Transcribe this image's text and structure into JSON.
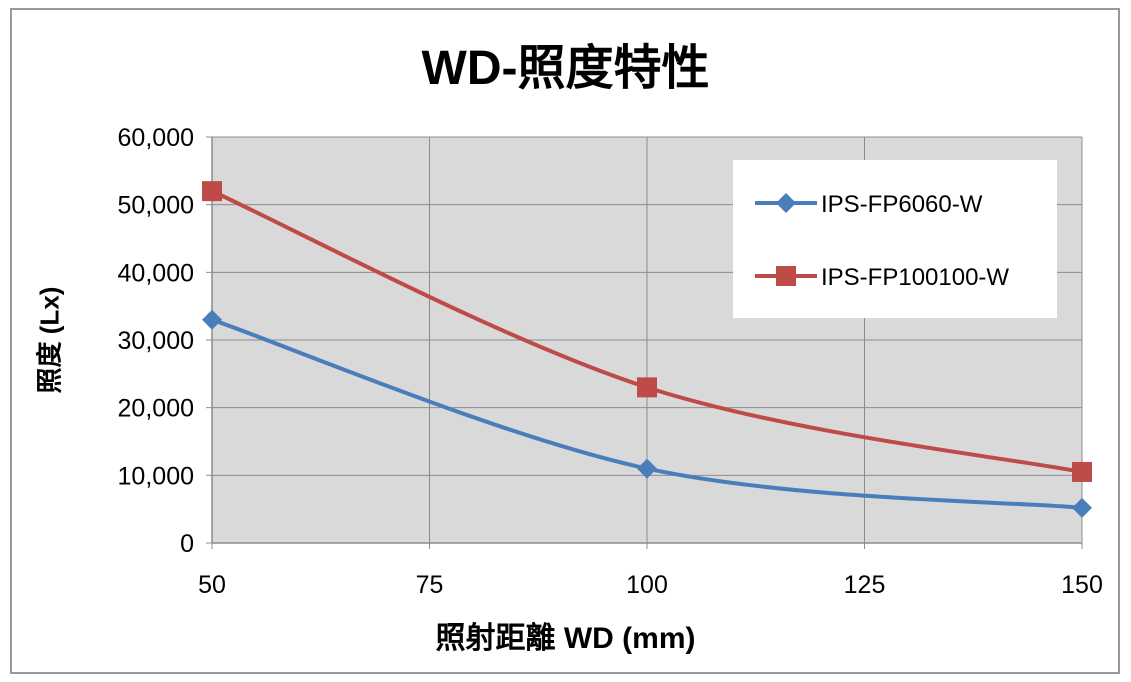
{
  "chart_data": {
    "type": "line",
    "title": "WD-照度特性",
    "xlabel": "照射距離  WD (mm)",
    "ylabel": "照度 (Lx)",
    "x_ticks": [
      "50",
      "75",
      "100",
      "125",
      "150"
    ],
    "y_ticks": [
      "0",
      "10,000",
      "20,000",
      "30,000",
      "40,000",
      "50,000",
      "60,000"
    ],
    "xlim": [
      50,
      150
    ],
    "ylim": [
      0,
      60000
    ],
    "grid": true,
    "legend_position": "top-right",
    "series": [
      {
        "name": "IPS-FP6060-W",
        "color": "#4a7ebb",
        "marker": "diamond",
        "x": [
          50,
          100,
          150
        ],
        "y": [
          33000,
          11000,
          5200
        ]
      },
      {
        "name": "IPS-FP100100-W",
        "color": "#be4b48",
        "marker": "square",
        "x": [
          50,
          100,
          150
        ],
        "y": [
          52000,
          23000,
          10500
        ]
      }
    ]
  }
}
